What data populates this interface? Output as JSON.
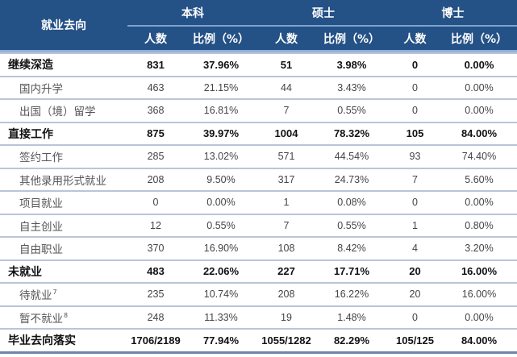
{
  "header": {
    "direction_label": "就业去向",
    "groups": [
      {
        "label": "本科",
        "count_label": "人数",
        "ratio_label": "比例（%）"
      },
      {
        "label": "硕士",
        "count_label": "人数",
        "ratio_label": "比例（%）"
      },
      {
        "label": "博士",
        "count_label": "人数",
        "ratio_label": "比例（%）"
      }
    ]
  },
  "colors": {
    "header_bg": "#245186",
    "header_text": "#ffffff",
    "row_border": "#b9c5d8"
  },
  "rows": [
    {
      "name": "继续深造",
      "level": "main",
      "sup": "",
      "bk_n": "831",
      "bk_p": "37.96%",
      "ss_n": "51",
      "ss_p": "3.98%",
      "bs_n": "0",
      "bs_p": "0.00%"
    },
    {
      "name": "国内升学",
      "level": "sub",
      "sup": "",
      "bk_n": "463",
      "bk_p": "21.15%",
      "ss_n": "44",
      "ss_p": "3.43%",
      "bs_n": "0",
      "bs_p": "0.00%"
    },
    {
      "name": "出国（境）留学",
      "level": "sub",
      "sup": "",
      "bk_n": "368",
      "bk_p": "16.81%",
      "ss_n": "7",
      "ss_p": "0.55%",
      "bs_n": "0",
      "bs_p": "0.00%"
    },
    {
      "name": "直接工作",
      "level": "main",
      "sup": "",
      "bk_n": "875",
      "bk_p": "39.97%",
      "ss_n": "1004",
      "ss_p": "78.32%",
      "bs_n": "105",
      "bs_p": "84.00%"
    },
    {
      "name": "签约工作",
      "level": "sub",
      "sup": "",
      "bk_n": "285",
      "bk_p": "13.02%",
      "ss_n": "571",
      "ss_p": "44.54%",
      "bs_n": "93",
      "bs_p": "74.40%"
    },
    {
      "name": "其他录用形式就业",
      "level": "sub",
      "sup": "",
      "bk_n": "208",
      "bk_p": "9.50%",
      "ss_n": "317",
      "ss_p": "24.73%",
      "bs_n": "7",
      "bs_p": "5.60%"
    },
    {
      "name": "项目就业",
      "level": "sub",
      "sup": "",
      "bk_n": "0",
      "bk_p": "0.00%",
      "ss_n": "1",
      "ss_p": "0.08%",
      "bs_n": "0",
      "bs_p": "0.00%"
    },
    {
      "name": "自主创业",
      "level": "sub",
      "sup": "",
      "bk_n": "12",
      "bk_p": "0.55%",
      "ss_n": "7",
      "ss_p": "0.55%",
      "bs_n": "1",
      "bs_p": "0.80%"
    },
    {
      "name": "自由职业",
      "level": "sub",
      "sup": "",
      "bk_n": "370",
      "bk_p": "16.90%",
      "ss_n": "108",
      "ss_p": "8.42%",
      "bs_n": "4",
      "bs_p": "3.20%"
    },
    {
      "name": "未就业",
      "level": "main",
      "sup": "",
      "bk_n": "483",
      "bk_p": "22.06%",
      "ss_n": "227",
      "ss_p": "17.71%",
      "bs_n": "20",
      "bs_p": "16.00%"
    },
    {
      "name": "待就业",
      "level": "sub",
      "sup": "7",
      "bk_n": "235",
      "bk_p": "10.74%",
      "ss_n": "208",
      "ss_p": "16.22%",
      "bs_n": "20",
      "bs_p": "16.00%"
    },
    {
      "name": "暂不就业",
      "level": "sub",
      "sup": "8",
      "bk_n": "248",
      "bk_p": "11.33%",
      "ss_n": "19",
      "ss_p": "1.48%",
      "bs_n": "0",
      "bs_p": "0.00%"
    },
    {
      "name": "毕业去向落实",
      "level": "main",
      "sup": "",
      "bk_n": "1706/2189",
      "bk_p": "77.94%",
      "ss_n": "1055/1282",
      "ss_p": "82.29%",
      "bs_n": "105/125",
      "bs_p": "84.00%"
    }
  ]
}
